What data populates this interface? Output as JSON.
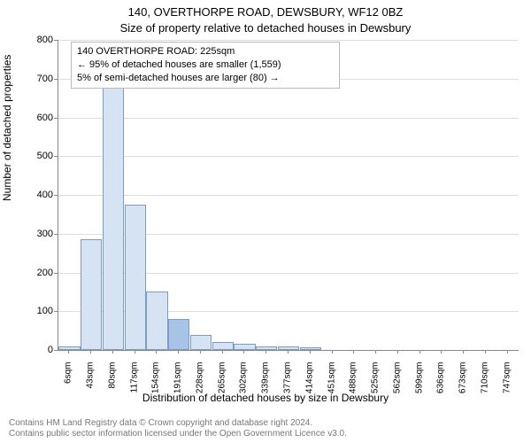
{
  "title_line1": "140, OVERTHORPE ROAD, DEWSBURY, WF12 0BZ",
  "title_line2": "Size of property relative to detached houses in Dewsbury",
  "annotation": {
    "line1": "140 OVERTHORPE ROAD: 225sqm",
    "line2": "← 95% of detached houses are smaller (1,559)",
    "line3": "5% of semi-detached houses are larger (80) →"
  },
  "yaxis_label": "Number of detached properties",
  "xaxis_label": "Distribution of detached houses by size in Dewsbury",
  "chart": {
    "type": "histogram",
    "ylim": [
      0,
      800
    ],
    "ytick_step": 100,
    "x_categories": [
      "6sqm",
      "43sqm",
      "80sqm",
      "117sqm",
      "154sqm",
      "191sqm",
      "228sqm",
      "265sqm",
      "302sqm",
      "339sqm",
      "377sqm",
      "414sqm",
      "451sqm",
      "488sqm",
      "525sqm",
      "562sqm",
      "599sqm",
      "636sqm",
      "673sqm",
      "710sqm",
      "747sqm"
    ],
    "values": [
      10,
      285,
      680,
      375,
      150,
      80,
      40,
      20,
      15,
      10,
      10,
      8,
      0,
      0,
      0,
      0,
      0,
      0,
      0,
      0,
      0
    ],
    "bar_fill": "#d6e3f3",
    "bar_border": "#7a9cc6",
    "highlight_index": 5,
    "highlight_fill": "#a7c4e6",
    "grid_color": "#dddddd",
    "axis_color": "#888888",
    "background": "#ffffff",
    "tick_fontsize": 11,
    "label_fontsize": 12
  },
  "footer": {
    "line1": "Contains HM Land Registry data © Crown copyright and database right 2024.",
    "line2": "Contains public sector information licensed under the Open Government Licence v3.0."
  }
}
